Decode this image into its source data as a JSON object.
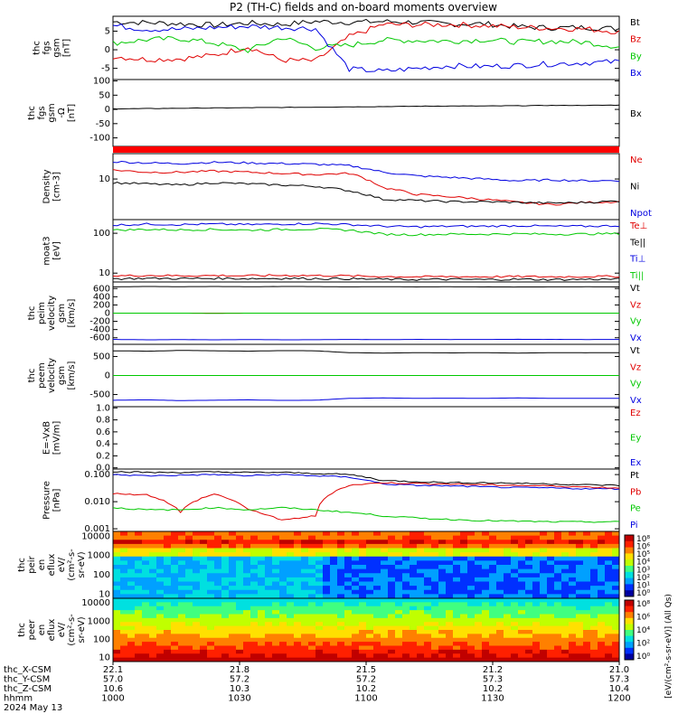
{
  "title": "P2 (TH-C) fields and on-board moments overview",
  "colors": {
    "black": "#000000",
    "red": "#e00000",
    "green": "#00c800",
    "blue": "#0000e0"
  },
  "chart_data": [
    {
      "id": "fgs",
      "type": "line",
      "ylabel": [
        "thc",
        "fgs",
        "gsm",
        "[nT]"
      ],
      "yticks": [
        "5",
        "0",
        "-5"
      ],
      "legend": [
        {
          "name": "Bt",
          "color": "black"
        },
        {
          "name": "Bz",
          "color": "red"
        },
        {
          "name": "By",
          "color": "green"
        },
        {
          "name": "Bx",
          "color": "blue"
        }
      ],
      "series": [
        {
          "name": "Bt",
          "color": "black",
          "values": [
            7.5,
            7.3,
            7.0,
            6.6,
            7.2,
            6.8,
            7.6,
            7.4,
            7.6,
            7.4,
            6.9,
            7.0,
            6.2,
            5.9,
            6.0,
            5.7
          ]
        },
        {
          "name": "Bz",
          "color": "red",
          "values": [
            -1.8,
            -2.6,
            -2.4,
            -1.5,
            0.8,
            -2.8,
            -3.0,
            3.5,
            6.8,
            6.7,
            6.8,
            6.5,
            6.1,
            5.8,
            5.6,
            4.8
          ]
        },
        {
          "name": "By",
          "color": "green",
          "values": [
            1.8,
            2.7,
            3.0,
            1.8,
            -0.2,
            3.3,
            0.5,
            1.2,
            2.6,
            2.5,
            2.3,
            2.7,
            2.1,
            2.3,
            2.0,
            0.8
          ]
        },
        {
          "name": "Bx",
          "color": "blue",
          "values": [
            6.5,
            5.5,
            5.5,
            6.0,
            6.3,
            6.0,
            5.7,
            -5.2,
            -5.8,
            -5.0,
            -4.3,
            -4.5,
            -4.2,
            -3.8,
            -3.5,
            -3.2
          ]
        }
      ]
    },
    {
      "id": "fgs_long",
      "type": "line",
      "ylabel": [
        "thc",
        "fgs",
        "gsm",
        "-Ω",
        "[nT]"
      ],
      "yticks": [
        "100",
        "50",
        "0",
        "-50",
        "-100"
      ],
      "legend": [
        {
          "name": "Bx",
          "color": "black"
        }
      ],
      "series": [
        {
          "name": "Bx",
          "color": "black",
          "values": [
            2,
            3,
            4,
            5,
            6,
            7,
            8,
            9,
            10,
            11,
            12,
            12,
            13,
            14,
            14,
            15
          ]
        }
      ]
    },
    {
      "id": "density",
      "type": "line",
      "ylabel": [
        "Density",
        "[cm-3]"
      ],
      "yticks": [
        "10"
      ],
      "legend": [
        {
          "name": "Ne",
          "color": "red"
        },
        {
          "name": "Ni",
          "color": "black"
        },
        {
          "name": "Npot",
          "color": "blue"
        }
      ],
      "series": [
        {
          "name": "Npot",
          "color": "blue",
          "values": [
            28,
            26,
            25,
            27,
            26,
            25,
            24,
            22,
            15,
            12,
            11,
            10,
            9,
            9.5,
            9,
            9.2
          ]
        },
        {
          "name": "Ne",
          "color": "red",
          "values": [
            17,
            15,
            15,
            16,
            15,
            14,
            13,
            14,
            6,
            4,
            3.5,
            3,
            2.5,
            2.2,
            2.5,
            2.6
          ]
        },
        {
          "name": "Ni",
          "color": "black",
          "values": [
            8,
            7.5,
            7,
            8,
            7.5,
            7,
            6.5,
            5,
            3,
            2.8,
            2.6,
            2.6,
            2.5,
            2.4,
            2.5,
            2.7
          ]
        }
      ]
    },
    {
      "id": "temperature",
      "type": "line",
      "ylabel": [
        "moat3",
        "[eV]"
      ],
      "yticks": [
        "100",
        "10"
      ],
      "legend": [
        {
          "name": "Te⊥",
          "color": "red"
        },
        {
          "name": "Te||",
          "color": "black"
        },
        {
          "name": "Ti⊥",
          "color": "blue"
        },
        {
          "name": "Ti||",
          "color": "green"
        }
      ],
      "series": [
        {
          "name": "Ti⊥",
          "color": "blue",
          "values": [
            160,
            170,
            165,
            170,
            165,
            170,
            175,
            165,
            150,
            145,
            150,
            150,
            155,
            150,
            150,
            155
          ]
        },
        {
          "name": "Ti||",
          "color": "green",
          "values": [
            120,
            125,
            122,
            125,
            120,
            125,
            128,
            120,
            95,
            92,
            95,
            95,
            97,
            95,
            96,
            98
          ]
        },
        {
          "name": "Te⊥",
          "color": "red",
          "values": [
            8.5,
            8.8,
            8.6,
            8.7,
            8.6,
            8.8,
            8.7,
            8.5,
            8.2,
            8.1,
            8.2,
            8.1,
            8.2,
            8.1,
            8.2,
            8.3
          ]
        },
        {
          "name": "Te||",
          "color": "black",
          "values": [
            7.2,
            7.4,
            7.3,
            7.4,
            7.3,
            7.4,
            7.3,
            7.2,
            7.0,
            6.9,
            7.0,
            6.9,
            7.0,
            6.9,
            7.0,
            7.1
          ]
        }
      ]
    },
    {
      "id": "peim",
      "type": "line",
      "ylabel": [
        "thc",
        "peim",
        "velocity",
        "gsm",
        "[km/s]"
      ],
      "yticks": [
        "600",
        "400",
        "200",
        "0",
        "-200",
        "-400",
        "-600"
      ],
      "legend": [
        {
          "name": "Vt",
          "color": "black"
        },
        {
          "name": "Vz",
          "color": "red"
        },
        {
          "name": "Vy",
          "color": "green"
        },
        {
          "name": "Vx",
          "color": "blue"
        }
      ],
      "series": [
        {
          "name": "Vt",
          "color": "black",
          "values": [
            640,
            650,
            645,
            650,
            645,
            650,
            648,
            640,
            645,
            640,
            642,
            640,
            638,
            640,
            642,
            640
          ]
        },
        {
          "name": "Vz",
          "color": "red",
          "values": [
            0,
            0,
            0,
            0,
            0,
            0,
            0,
            0,
            0,
            0,
            0,
            0,
            0,
            0,
            0,
            0
          ]
        },
        {
          "name": "Vy",
          "color": "green",
          "values": [
            0,
            0,
            0,
            -5,
            0,
            0,
            0,
            0,
            0,
            0,
            0,
            0,
            0,
            0,
            0,
            0
          ]
        },
        {
          "name": "Vx",
          "color": "blue",
          "values": [
            -640,
            -650,
            -645,
            -650,
            -645,
            -650,
            -648,
            -640,
            -645,
            -640,
            -642,
            -640,
            -638,
            -640,
            -642,
            -640
          ]
        }
      ]
    },
    {
      "id": "peem",
      "type": "line",
      "ylabel": [
        "thc",
        "peem",
        "velocity",
        "gsm",
        "[km/s]"
      ],
      "yticks": [
        "500",
        "0",
        "-500"
      ],
      "legend": [
        {
          "name": "Vt",
          "color": "black"
        },
        {
          "name": "Vz",
          "color": "red"
        },
        {
          "name": "Vy",
          "color": "green"
        },
        {
          "name": "Vx",
          "color": "blue"
        }
      ],
      "series": [
        {
          "name": "Vt",
          "color": "black",
          "values": [
            650,
            640,
            660,
            650,
            640,
            655,
            650,
            600,
            590,
            600,
            595,
            600,
            590,
            600,
            598,
            600
          ]
        },
        {
          "name": "Vz",
          "color": "red",
          "values": [
            0,
            0,
            0,
            0,
            0,
            0,
            0,
            0,
            0,
            0,
            0,
            0,
            0,
            0,
            0,
            0
          ]
        },
        {
          "name": "Vy",
          "color": "green",
          "values": [
            0,
            0,
            0,
            0,
            0,
            0,
            0,
            0,
            0,
            0,
            0,
            0,
            0,
            0,
            0,
            0
          ]
        },
        {
          "name": "Vx",
          "color": "blue",
          "values": [
            -650,
            -640,
            -660,
            -650,
            -640,
            -655,
            -650,
            -600,
            -590,
            -600,
            -595,
            -600,
            -590,
            -600,
            -598,
            -600
          ]
        }
      ]
    },
    {
      "id": "efield",
      "type": "line",
      "ylabel": [
        "E=-VxB",
        "[mV/m]"
      ],
      "yticks": [
        "1.0",
        "0.8",
        "0.6",
        "0.4",
        "0.2",
        "0.0"
      ],
      "legend": [
        {
          "name": "Ez",
          "color": "red"
        },
        {
          "name": "Ey",
          "color": "green"
        },
        {
          "name": "Ex",
          "color": "blue"
        }
      ],
      "series": []
    },
    {
      "id": "pressure",
      "type": "line",
      "ylabel": [
        "Pressure",
        "[nPa]"
      ],
      "yticks": [
        "0.100",
        "0.010",
        "0.001"
      ],
      "legend": [
        {
          "name": "Pt",
          "color": "black"
        },
        {
          "name": "Pb",
          "color": "red"
        },
        {
          "name": "Pe",
          "color": "green"
        },
        {
          "name": "Pi",
          "color": "blue"
        }
      ],
      "series": [
        {
          "name": "Pt",
          "color": "black",
          "values": [
            0.13,
            0.12,
            0.12,
            0.125,
            0.12,
            0.12,
            0.11,
            0.1,
            0.06,
            0.055,
            0.05,
            0.05,
            0.048,
            0.045,
            0.042,
            0.04
          ]
        },
        {
          "name": "Pi",
          "color": "blue",
          "values": [
            0.1,
            0.09,
            0.095,
            0.1,
            0.09,
            0.1,
            0.09,
            0.08,
            0.045,
            0.04,
            0.038,
            0.035,
            0.033,
            0.032,
            0.03,
            0.03
          ]
        },
        {
          "name": "Pb",
          "color": "red",
          "values": [
            0.02,
            0.018,
            0.004,
            0.019,
            0.005,
            0.002,
            0.003,
            0.04,
            0.05,
            0.047,
            0.045,
            0.042,
            0.04,
            0.038,
            0.035,
            0.032
          ]
        },
        {
          "name": "Pe",
          "color": "green",
          "values": [
            0.006,
            0.005,
            0.005,
            0.006,
            0.005,
            0.006,
            0.005,
            0.004,
            0.003,
            0.0025,
            0.0022,
            0.002,
            0.0019,
            0.0018,
            0.0018,
            0.0018
          ]
        }
      ]
    },
    {
      "id": "peir",
      "type": "heatmap",
      "ylabel": [
        "thc",
        "peir",
        "en",
        "eflux",
        "eV/",
        "(cm²-s-",
        "sr-eV)"
      ],
      "yticks": [
        "10000",
        "1000",
        "100",
        "10"
      ]
    },
    {
      "id": "peer",
      "type": "heatmap",
      "ylabel": [
        "thc",
        "peer",
        "en",
        "eflux",
        "eV/",
        "(cm²-s-",
        "sr-eV)"
      ],
      "yticks": [
        "10000",
        "1000",
        "100",
        "10"
      ]
    }
  ],
  "colorbar": {
    "ticks_top": [
      "10⁸",
      "10⁶",
      "10⁵",
      "10⁴",
      "10³",
      "10²",
      "10¹",
      "10⁰"
    ],
    "ticks_bottom": [
      "10⁸",
      "10⁶",
      "10⁴",
      "10²",
      "10⁰"
    ],
    "label": "[eV/(cm²-s-sr-eV)] (All Qs)"
  },
  "xaxis": {
    "row_labels": [
      "thc_X-CSM",
      "thc_Y-CSM",
      "thc_Z-CSM",
      "hhmm",
      "2024 May 13"
    ],
    "columns": [
      [
        "22.1",
        "57.0",
        "10.6",
        "1000"
      ],
      [
        "21.8",
        "57.2",
        "10.3",
        "1030"
      ],
      [
        "21.5",
        "57.2",
        "10.2",
        "1100"
      ],
      [
        "21.2",
        "57.3",
        "10.2",
        "1130"
      ],
      [
        "21.0",
        "57.3",
        "10.4",
        "1200"
      ]
    ]
  }
}
